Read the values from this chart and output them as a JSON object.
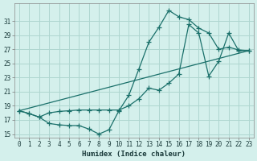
{
  "xlabel": "Humidex (Indice chaleur)",
  "bg_color": "#d4f0ec",
  "grid_color": "#aed6d0",
  "line_color": "#1a706a",
  "xlim": [
    -0.5,
    23.5
  ],
  "ylim": [
    14.5,
    33.5
  ],
  "xticks": [
    0,
    1,
    2,
    3,
    4,
    5,
    6,
    7,
    8,
    9,
    10,
    11,
    12,
    13,
    14,
    15,
    16,
    17,
    18,
    19,
    20,
    21,
    22,
    23
  ],
  "yticks": [
    15,
    17,
    19,
    21,
    23,
    25,
    27,
    29,
    31
  ],
  "line1_x": [
    0,
    1,
    2,
    3,
    4,
    5,
    6,
    7,
    8,
    9,
    10,
    11,
    12,
    13,
    14,
    15,
    16,
    17,
    18,
    19,
    20,
    21,
    22,
    23
  ],
  "line1_y": [
    18.3,
    17.9,
    17.4,
    16.5,
    16.3,
    16.2,
    16.2,
    15.7,
    15.0,
    15.6,
    18.3,
    20.5,
    24.2,
    28.0,
    30.1,
    32.5,
    31.6,
    31.2,
    30.0,
    29.3,
    27.0,
    27.3,
    26.9,
    26.8
  ],
  "line2_x": [
    0,
    1,
    2,
    3,
    4,
    5,
    6,
    7,
    8,
    9,
    10,
    11,
    12,
    13,
    14,
    15,
    16,
    17,
    18,
    19,
    20,
    21,
    22,
    23
  ],
  "line2_y": [
    18.3,
    17.9,
    17.4,
    18.0,
    18.2,
    18.3,
    18.4,
    18.4,
    18.4,
    18.4,
    18.4,
    19.0,
    20.0,
    21.5,
    21.2,
    22.2,
    23.5,
    30.5,
    29.3,
    23.2,
    25.3,
    29.3,
    26.8,
    26.8
  ],
  "line3_x": [
    0,
    23
  ],
  "line3_y": [
    18.3,
    26.8
  ]
}
